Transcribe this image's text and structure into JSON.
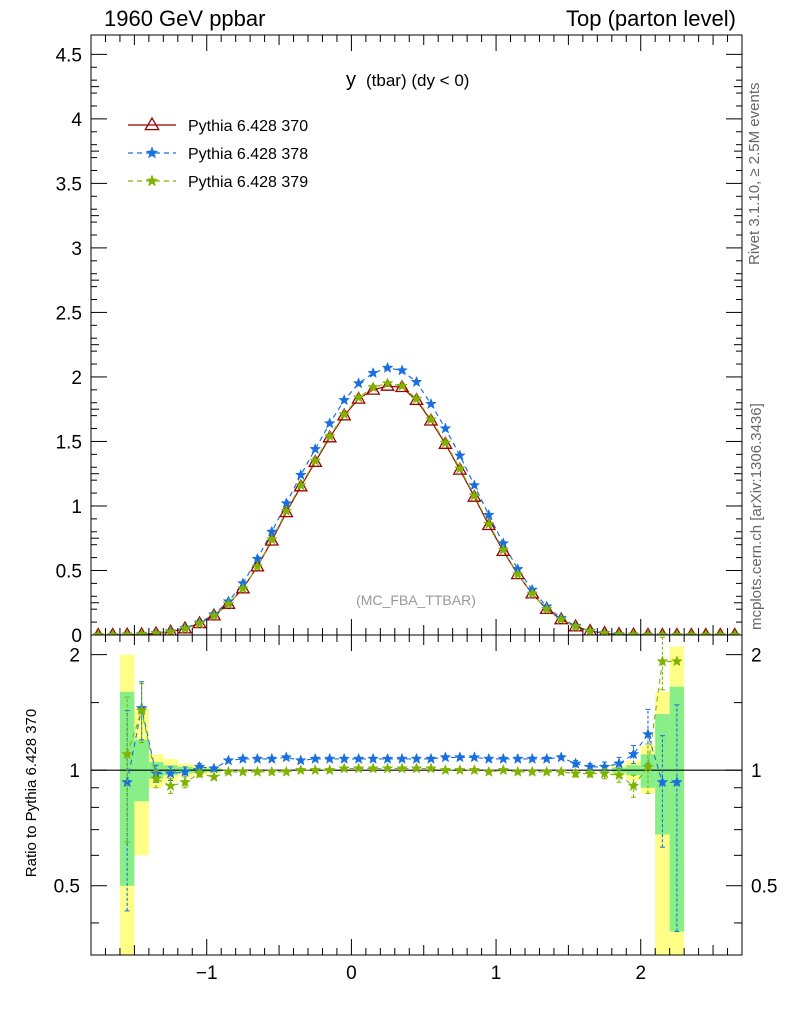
{
  "header": {
    "left": "1960 GeV ppbar",
    "right": "Top (parton level)"
  },
  "side": {
    "rivet": "Rivet 3.1.10, ≥ 2.5M events",
    "mcplots": "mcplots.cern.ch [arXiv:1306.3436]"
  },
  "chart_data": [
    {
      "type": "line",
      "title_main": "y",
      "title_sub": "(tbar) (dy < 0)",
      "watermark": "(MC_FBA_TTBAR)",
      "xlim": [
        -1.8,
        2.7
      ],
      "ylim": [
        0,
        4.65
      ],
      "yticks": [
        0.5,
        1,
        1.5,
        2,
        2.5,
        3,
        3.5,
        4,
        4.5
      ],
      "ytick_labels": [
        "0.5",
        "1",
        "1.5",
        "2",
        "2.5",
        "3",
        "3.5",
        "4",
        "4.5"
      ],
      "y0_label": "0",
      "x": [
        -1.75,
        -1.65,
        -1.55,
        -1.45,
        -1.35,
        -1.25,
        -1.15,
        -1.05,
        -0.95,
        -0.85,
        -0.75,
        -0.65,
        -0.55,
        -0.45,
        -0.35,
        -0.25,
        -0.15,
        -0.05,
        0.05,
        0.15,
        0.25,
        0.35,
        0.45,
        0.55,
        0.65,
        0.75,
        0.85,
        0.95,
        1.05,
        1.15,
        1.25,
        1.35,
        1.45,
        1.55,
        1.65,
        1.75,
        1.85,
        1.95,
        2.05,
        2.15,
        2.25,
        2.35,
        2.45,
        2.55,
        2.65
      ],
      "series": [
        {
          "name": "Pythia 6.428 370",
          "color": "#990000",
          "marker": "triangle-open",
          "values": [
            0,
            0,
            0.002,
            0.005,
            0.012,
            0.025,
            0.05,
            0.09,
            0.15,
            0.24,
            0.36,
            0.53,
            0.73,
            0.95,
            1.15,
            1.34,
            1.53,
            1.7,
            1.83,
            1.9,
            1.93,
            1.92,
            1.82,
            1.66,
            1.48,
            1.28,
            1.07,
            0.85,
            0.65,
            0.47,
            0.32,
            0.2,
            0.12,
            0.065,
            0.03,
            0.014,
            0.006,
            0.002,
            0.001,
            0,
            0,
            0,
            0,
            0,
            0
          ]
        },
        {
          "name": "Pythia 6.428 378",
          "color": "#1a6fdf",
          "marker": "star",
          "dash": "5,4",
          "values": [
            0,
            0,
            0.003,
            0.006,
            0.014,
            0.028,
            0.055,
            0.095,
            0.16,
            0.26,
            0.4,
            0.59,
            0.8,
            1.02,
            1.24,
            1.44,
            1.64,
            1.82,
            1.95,
            2.03,
            2.07,
            2.05,
            1.96,
            1.79,
            1.6,
            1.39,
            1.16,
            0.93,
            0.71,
            0.51,
            0.35,
            0.22,
            0.13,
            0.07,
            0.032,
            0.015,
            0.006,
            0.002,
            0.001,
            0,
            0,
            0,
            0,
            0,
            0
          ]
        },
        {
          "name": "Pythia 6.428 379",
          "color": "#80b300",
          "marker": "star",
          "dash": "5,4",
          "values": [
            0,
            0,
            0.002,
            0.005,
            0.012,
            0.024,
            0.049,
            0.088,
            0.15,
            0.24,
            0.36,
            0.53,
            0.74,
            0.96,
            1.16,
            1.35,
            1.54,
            1.71,
            1.84,
            1.92,
            1.95,
            1.93,
            1.83,
            1.67,
            1.49,
            1.29,
            1.08,
            0.86,
            0.66,
            0.47,
            0.32,
            0.2,
            0.12,
            0.064,
            0.029,
            0.013,
            0.005,
            0.002,
            0.001,
            0,
            0,
            0,
            0,
            0,
            0
          ]
        }
      ]
    },
    {
      "type": "line",
      "ylabel": "Ratio to Pythia 6.428 370",
      "xlim": [
        -1.8,
        2.7
      ],
      "ylim": [
        0.33,
        2.25
      ],
      "yticks": [
        0.5,
        1,
        2
      ],
      "ytick_labels": [
        "0.5",
        "1",
        "2"
      ],
      "xticks": [
        -1,
        0,
        1,
        2
      ],
      "xtick_labels": [
        "−1",
        "0",
        "1",
        "2"
      ],
      "bands": {
        "x": [
          -1.55,
          -1.45,
          -1.35,
          -1.25,
          -1.15,
          -1.05,
          -0.95,
          1.85,
          1.95,
          2.05,
          2.15,
          2.25
        ],
        "yellow_lo": [
          0.33,
          0.6,
          0.9,
          0.93,
          0.96,
          0.97,
          0.98,
          0.97,
          0.94,
          0.87,
          0.33,
          0.33
        ],
        "yellow_hi": [
          2.0,
          1.45,
          1.1,
          1.07,
          1.04,
          1.03,
          1.02,
          1.03,
          1.06,
          1.16,
          1.6,
          2.1
        ],
        "green_lo": [
          0.5,
          0.83,
          0.95,
          0.97,
          0.98,
          0.985,
          0.99,
          0.985,
          0.97,
          0.9,
          0.68,
          0.38
        ],
        "green_hi": [
          1.6,
          1.2,
          1.05,
          1.03,
          1.02,
          1.015,
          1.01,
          1.015,
          1.03,
          1.1,
          1.4,
          1.65
        ]
      },
      "series": [
        {
          "name": "Pythia 6.428 378",
          "color": "#1a6fdf",
          "x": [
            -1.55,
            -1.45,
            -1.35,
            -1.25,
            -1.15,
            -1.05,
            -0.95,
            -0.85,
            -0.75,
            -0.65,
            -0.55,
            -0.45,
            -0.35,
            -0.25,
            -0.15,
            -0.05,
            0.05,
            0.15,
            0.25,
            0.35,
            0.45,
            0.55,
            0.65,
            0.75,
            0.85,
            0.95,
            1.05,
            1.15,
            1.25,
            1.35,
            1.45,
            1.55,
            1.65,
            1.75,
            1.85,
            1.95,
            2.05,
            2.15,
            2.25
          ],
          "values": [
            0.93,
            1.45,
            0.98,
            0.98,
            0.99,
            1.02,
            1.01,
            1.06,
            1.07,
            1.07,
            1.07,
            1.08,
            1.06,
            1.07,
            1.07,
            1.07,
            1.07,
            1.07,
            1.07,
            1.07,
            1.07,
            1.07,
            1.08,
            1.08,
            1.08,
            1.07,
            1.07,
            1.07,
            1.07,
            1.07,
            1.08,
            1.04,
            1.02,
            1.02,
            1.04,
            1.1,
            1.24,
            0.93,
            0.93
          ],
          "err": [
            0.5,
            0.25,
            0.05,
            0.04,
            0.03,
            0.02,
            0.01,
            0.01,
            0.01,
            0.005,
            0.005,
            0.005,
            0.005,
            0.005,
            0.005,
            0.005,
            0.005,
            0.005,
            0.005,
            0.005,
            0.005,
            0.005,
            0.005,
            0.005,
            0.005,
            0.005,
            0.005,
            0.01,
            0.01,
            0.01,
            0.01,
            0.02,
            0.02,
            0.03,
            0.04,
            0.06,
            0.2,
            0.3,
            0.55
          ]
        },
        {
          "name": "Pythia 6.428 379",
          "color": "#80b300",
          "x": [
            -1.55,
            -1.45,
            -1.35,
            -1.25,
            -1.15,
            -1.05,
            -0.95,
            -0.85,
            -0.75,
            -0.65,
            -0.55,
            -0.45,
            -0.35,
            -0.25,
            -0.15,
            -0.05,
            0.05,
            0.15,
            0.25,
            0.35,
            0.45,
            0.55,
            0.65,
            0.75,
            0.85,
            0.95,
            1.05,
            1.15,
            1.25,
            1.35,
            1.45,
            1.55,
            1.65,
            1.75,
            1.85,
            1.95,
            2.05,
            2.15,
            2.25
          ],
          "values": [
            1.1,
            1.43,
            0.95,
            0.91,
            0.93,
            0.98,
            0.96,
            0.99,
            0.99,
            0.99,
            0.99,
            0.99,
            1.0,
            1.0,
            1.0,
            1.01,
            1.01,
            1.01,
            1.01,
            1.01,
            1.01,
            1.01,
            1.0,
            1.0,
            1.0,
            0.99,
            1.0,
            0.99,
            0.99,
            0.99,
            0.99,
            0.98,
            0.98,
            0.98,
            0.97,
            0.91,
            1.02,
            1.92,
            1.92
          ],
          "err": [
            0.45,
            0.25,
            0.05,
            0.04,
            0.03,
            0.02,
            0.01,
            0.01,
            0.01,
            0.005,
            0.005,
            0.005,
            0.005,
            0.005,
            0.005,
            0.005,
            0.005,
            0.005,
            0.005,
            0.005,
            0.005,
            0.005,
            0.005,
            0.005,
            0.005,
            0.005,
            0.005,
            0.01,
            0.01,
            0.01,
            0.01,
            0.02,
            0.02,
            0.03,
            0.04,
            0.06,
            0.15,
            0.3,
            0
          ]
        }
      ]
    }
  ]
}
